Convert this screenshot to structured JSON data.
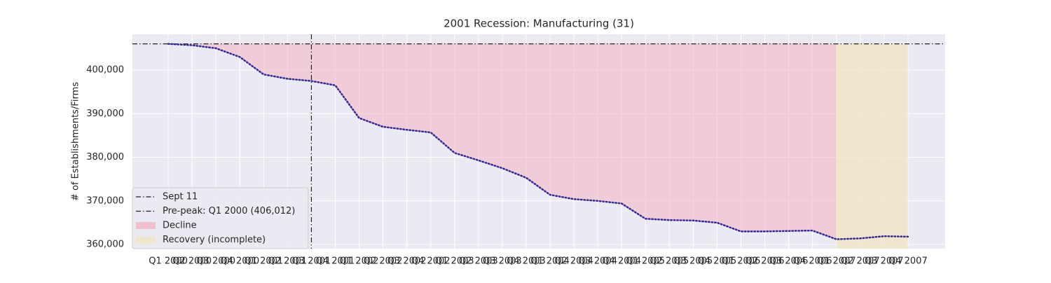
{
  "chart_data": {
    "type": "line",
    "title": "2001 Recession: Manufacturing (31)",
    "ylabel": "# of Establishments/Firms",
    "categories": [
      "Q1 2000",
      "Q2 2000",
      "Q3 2000",
      "Q4 2000",
      "Q1 2001",
      "Q2 2001",
      "Q3 2001",
      "Q4 2001",
      "Q1 2002",
      "Q2 2002",
      "Q3 2002",
      "Q4 2002",
      "Q1 2003",
      "Q2 2003",
      "Q3 2003",
      "Q4 2003",
      "Q1 2004",
      "Q2 2004",
      "Q3 2004",
      "Q4 2004",
      "Q1 2005",
      "Q2 2005",
      "Q3 2005",
      "Q4 2005",
      "Q1 2006",
      "Q2 2006",
      "Q3 2006",
      "Q4 2006",
      "Q1 2007",
      "Q2 2007",
      "Q3 2007",
      "Q4 2007"
    ],
    "series": [
      {
        "name": "Establishments",
        "color": "#33289a",
        "values": [
          406012,
          405700,
          405000,
          403000,
          399000,
          398000,
          397500,
          396500,
          389000,
          387000,
          386300,
          385700,
          381000,
          379300,
          377500,
          375300,
          371400,
          370400,
          370000,
          369400,
          365900,
          365600,
          365500,
          365000,
          363000,
          363000,
          363100,
          363200,
          361200,
          361400,
          361900,
          361800
        ]
      }
    ],
    "ylim": [
      359040,
      408200
    ],
    "yticks": [
      {
        "value": 360000,
        "label": "360,000"
      },
      {
        "value": 370000,
        "label": "370,000"
      },
      {
        "value": 380000,
        "label": "380,000"
      },
      {
        "value": 390000,
        "label": "390,000"
      },
      {
        "value": 400000,
        "label": "400,000"
      }
    ],
    "grid": true,
    "vline": {
      "label": "Sept 11",
      "x": "Q3 2001",
      "color": "#222222"
    },
    "reference_line": {
      "label": "Pre-peak: Q1 2000 (406,012)",
      "value": 406012,
      "color": "#222222"
    },
    "decline": {
      "label": "Decline",
      "start": "Q1 2000",
      "end": "Q1 2007",
      "color": "#f2b3c3"
    },
    "recovery": {
      "label": "Recovery (incomplete)",
      "start": "Q1 2007",
      "end": "Q4 2007",
      "color": "#efe6c0"
    },
    "legend": "lower left"
  }
}
